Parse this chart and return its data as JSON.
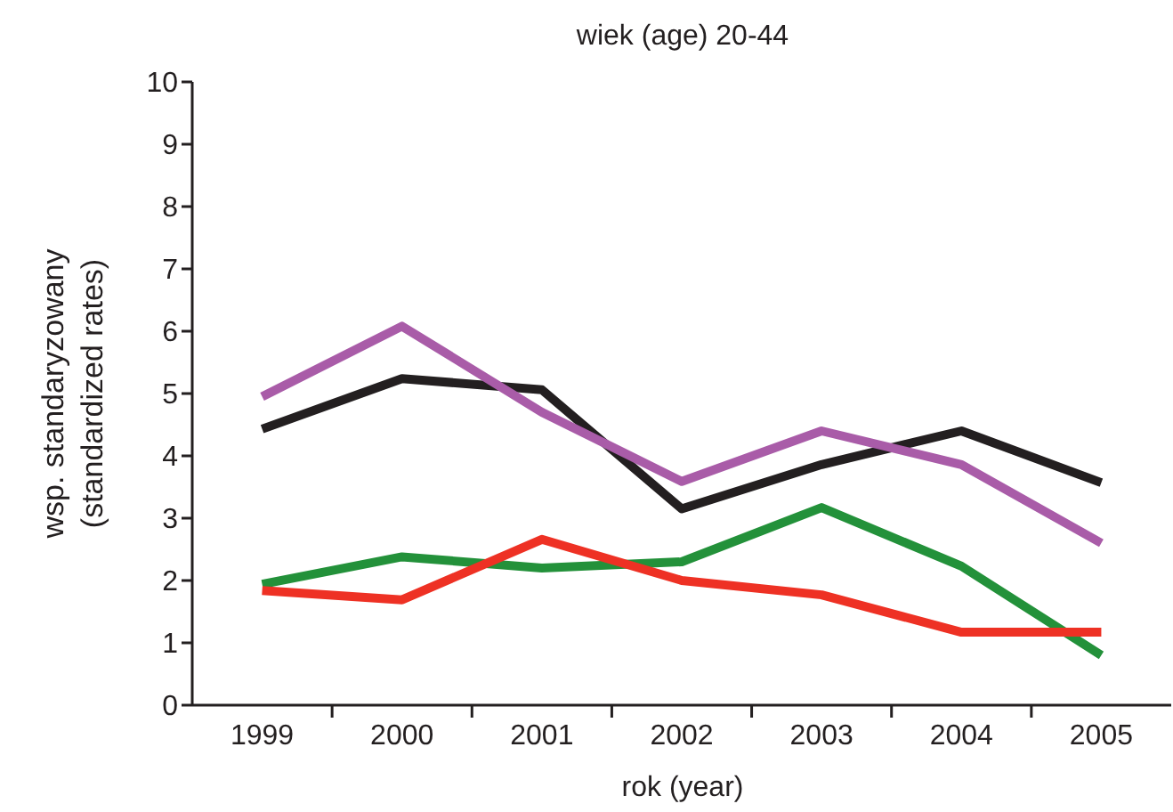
{
  "chart_data": {
    "type": "line",
    "title": "wiek (age) 20-44",
    "xlabel": "rok (year)",
    "ylabel": "wsp. standaryzowany\n(standardized rates)",
    "categories": [
      "1999",
      "2000",
      "2001",
      "2002",
      "2003",
      "2004",
      "2005"
    ],
    "series": [
      {
        "color": "#231f20",
        "values": [
          4.43,
          5.24,
          5.06,
          3.15,
          3.86,
          4.4,
          3.57
        ]
      },
      {
        "color": "#a95ca8",
        "values": [
          4.95,
          6.08,
          4.7,
          3.59,
          4.4,
          3.86,
          2.6
        ]
      },
      {
        "color": "#23913a",
        "values": [
          1.94,
          2.38,
          2.2,
          2.3,
          3.17,
          2.23,
          0.8
        ]
      },
      {
        "color": "#ee3124",
        "values": [
          1.84,
          1.69,
          2.66,
          2.0,
          1.77,
          1.17,
          1.17
        ]
      }
    ],
    "ylim": [
      0,
      10
    ],
    "yticks": [
      0,
      1,
      2,
      3,
      4,
      5,
      6,
      7,
      8,
      9,
      10
    ],
    "grid": false,
    "legend": false,
    "marker": "none",
    "line_style": "solid"
  }
}
